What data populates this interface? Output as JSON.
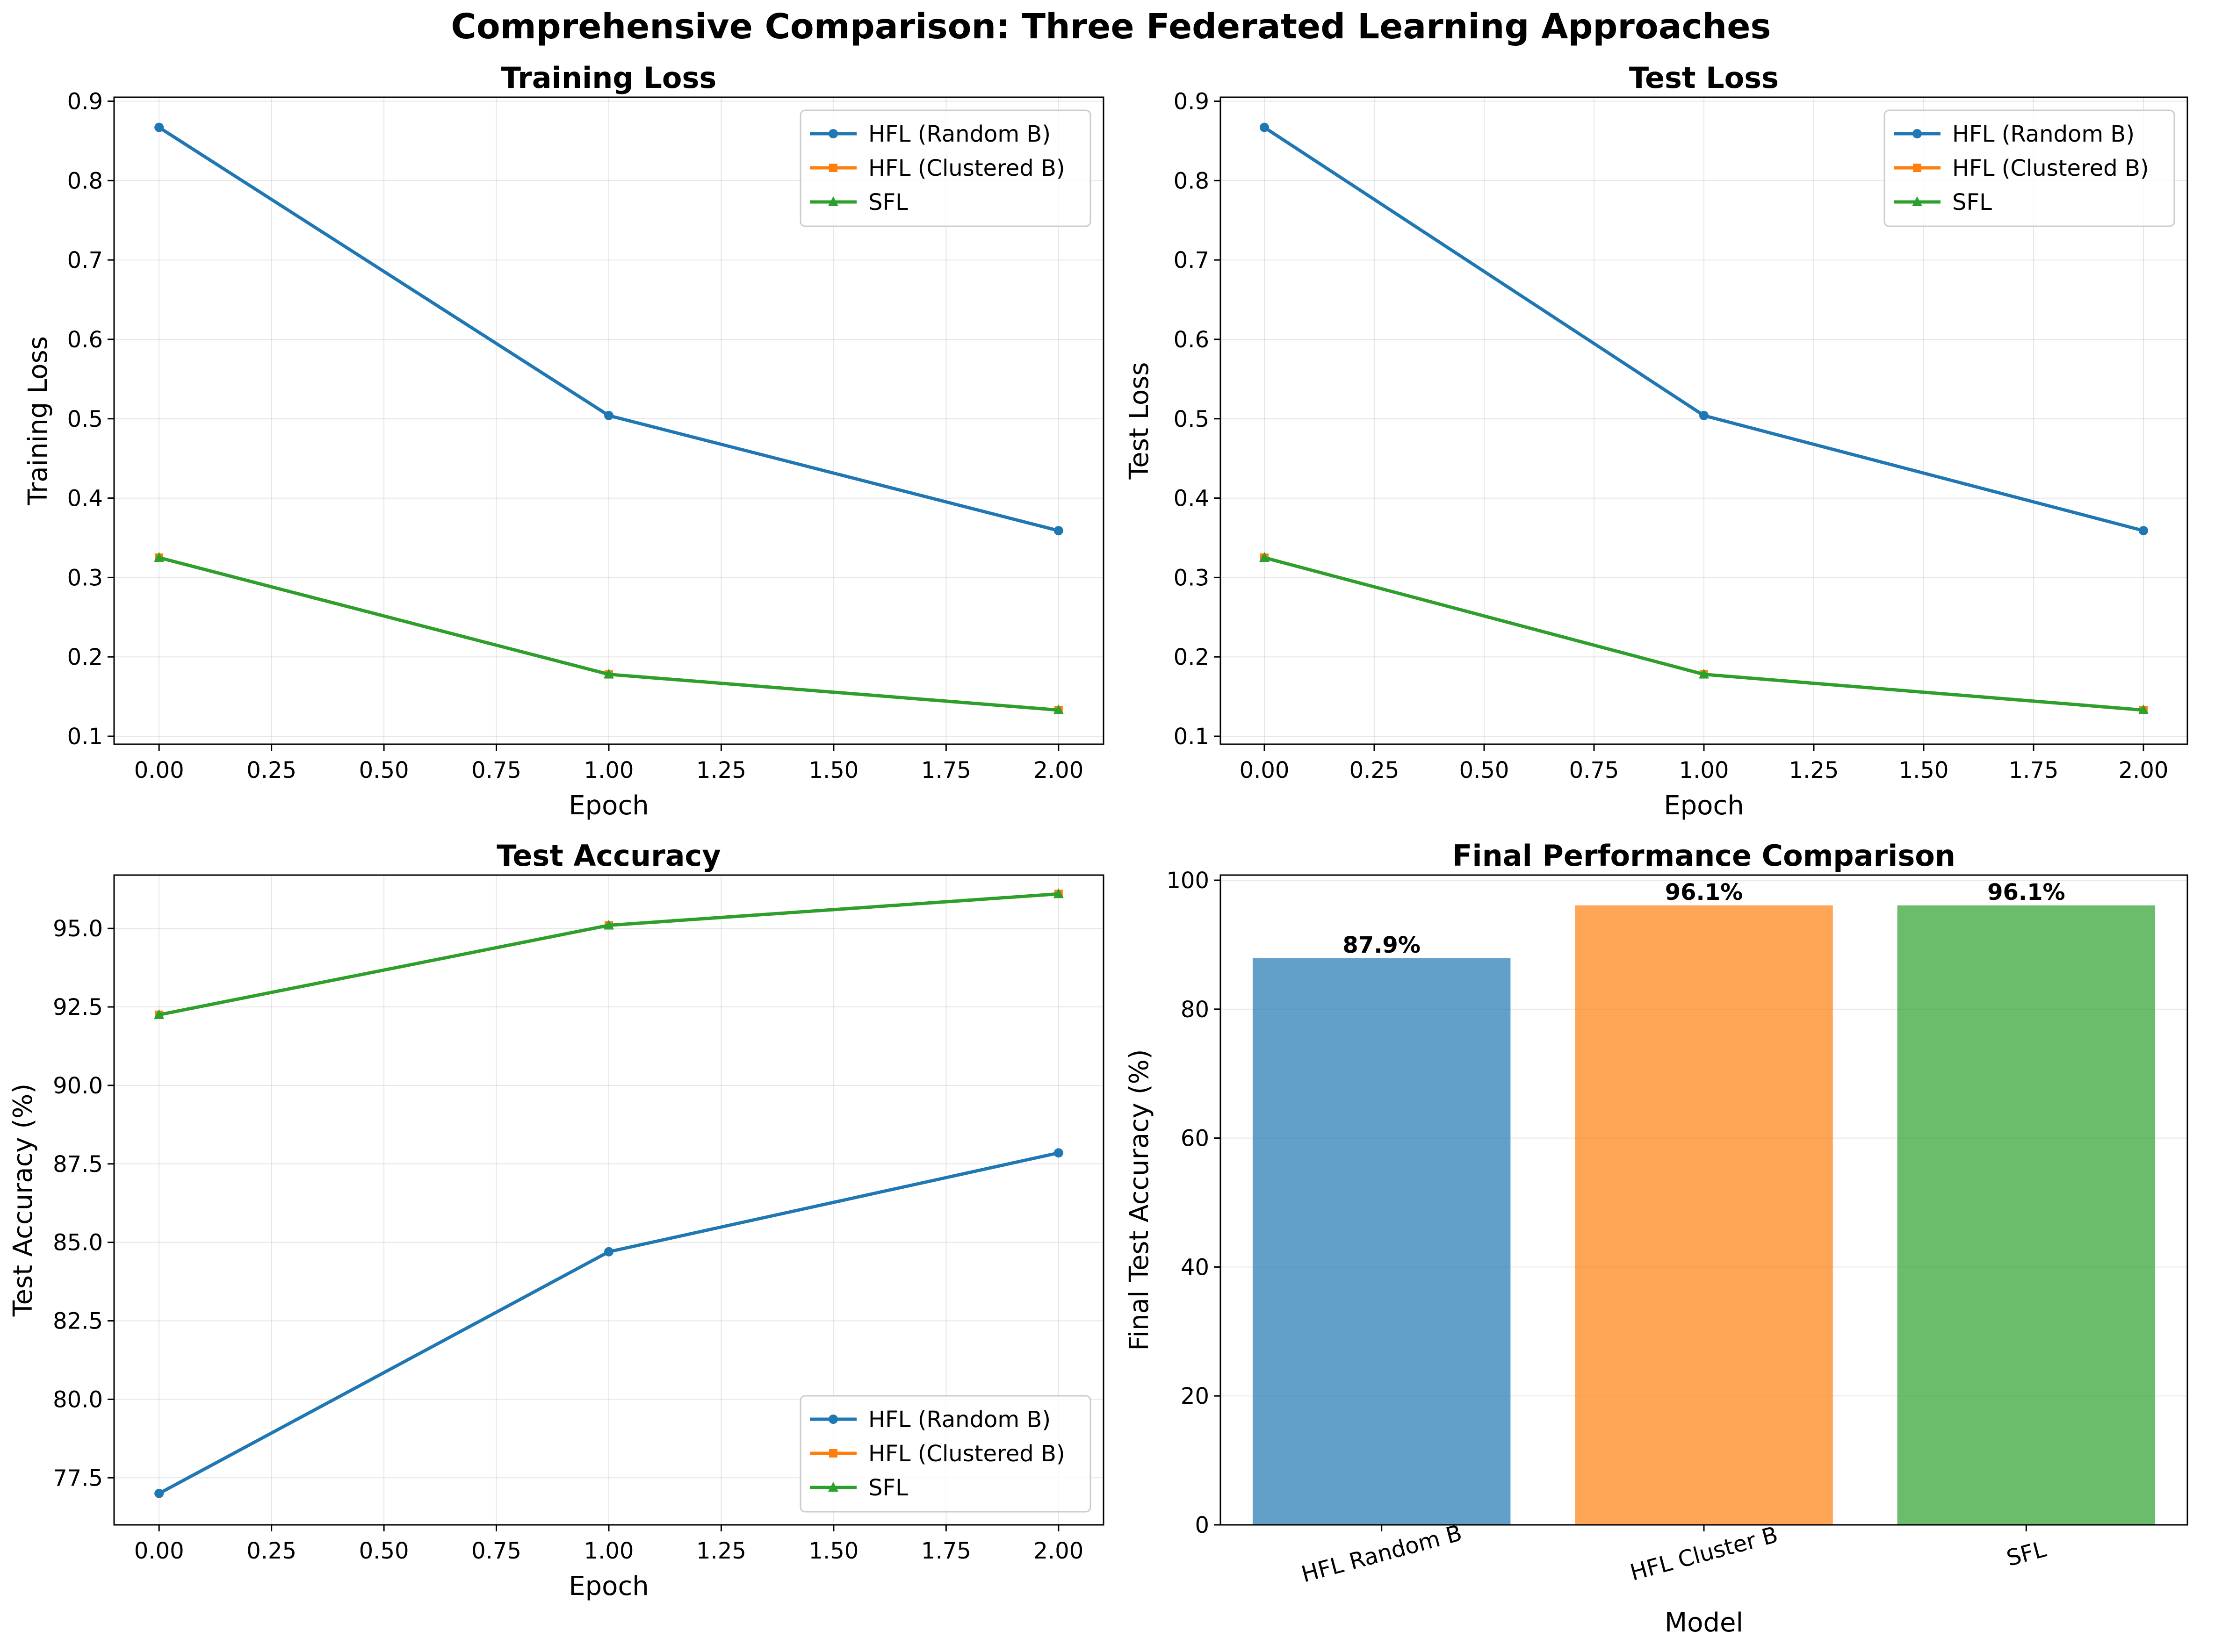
{
  "figure_title": "Comprehensive Comparison: Three Federated Learning Approaches",
  "colors": {
    "hfl_random": "#1f77b4",
    "hfl_clustered": "#ff7f0e",
    "sfl": "#2ca02c"
  },
  "chart_data": [
    {
      "id": "training-loss",
      "type": "line",
      "title": "Training Loss",
      "xlabel": "Epoch",
      "ylabel": "Training Loss",
      "xlim": [
        -0.1,
        2.1
      ],
      "ylim": [
        0.09,
        0.905
      ],
      "xticks": [
        0.0,
        0.25,
        0.5,
        0.75,
        1.0,
        1.25,
        1.5,
        1.75,
        2.0
      ],
      "xtick_labels": [
        "0.00",
        "0.25",
        "0.50",
        "0.75",
        "1.00",
        "1.25",
        "1.50",
        "1.75",
        "2.00"
      ],
      "yticks": [
        0.1,
        0.2,
        0.3,
        0.4,
        0.5,
        0.6,
        0.7,
        0.8,
        0.9
      ],
      "ytick_labels": [
        "0.1",
        "0.2",
        "0.3",
        "0.4",
        "0.5",
        "0.6",
        "0.7",
        "0.8",
        "0.9"
      ],
      "grid": true,
      "legend_position": "upper-right",
      "x": [
        0,
        1,
        2
      ],
      "series": [
        {
          "name": "HFL (Random B)",
          "color": "#1f77b4",
          "marker": "circle",
          "values": [
            0.867,
            0.504,
            0.359
          ]
        },
        {
          "name": "HFL (Clustered B)",
          "color": "#ff7f0e",
          "marker": "square",
          "values": [
            0.325,
            0.178,
            0.133
          ]
        },
        {
          "name": "SFL",
          "color": "#2ca02c",
          "marker": "triangle",
          "values": [
            0.325,
            0.178,
            0.133
          ]
        }
      ]
    },
    {
      "id": "test-loss",
      "type": "line",
      "title": "Test Loss",
      "xlabel": "Epoch",
      "ylabel": "Test Loss",
      "xlim": [
        -0.1,
        2.1
      ],
      "ylim": [
        0.09,
        0.905
      ],
      "xticks": [
        0.0,
        0.25,
        0.5,
        0.75,
        1.0,
        1.25,
        1.5,
        1.75,
        2.0
      ],
      "xtick_labels": [
        "0.00",
        "0.25",
        "0.50",
        "0.75",
        "1.00",
        "1.25",
        "1.50",
        "1.75",
        "2.00"
      ],
      "yticks": [
        0.1,
        0.2,
        0.3,
        0.4,
        0.5,
        0.6,
        0.7,
        0.8,
        0.9
      ],
      "ytick_labels": [
        "0.1",
        "0.2",
        "0.3",
        "0.4",
        "0.5",
        "0.6",
        "0.7",
        "0.8",
        "0.9"
      ],
      "grid": true,
      "legend_position": "upper-right",
      "x": [
        0,
        1,
        2
      ],
      "series": [
        {
          "name": "HFL (Random B)",
          "color": "#1f77b4",
          "marker": "circle",
          "values": [
            0.867,
            0.504,
            0.359
          ]
        },
        {
          "name": "HFL (Clustered B)",
          "color": "#ff7f0e",
          "marker": "square",
          "values": [
            0.325,
            0.178,
            0.133
          ]
        },
        {
          "name": "SFL",
          "color": "#2ca02c",
          "marker": "triangle",
          "values": [
            0.325,
            0.178,
            0.133
          ]
        }
      ]
    },
    {
      "id": "test-accuracy",
      "type": "line",
      "title": "Test Accuracy",
      "xlabel": "Epoch",
      "ylabel": "Test Accuracy (%)",
      "xlim": [
        -0.1,
        2.1
      ],
      "ylim": [
        76.0,
        96.7
      ],
      "xticks": [
        0.0,
        0.25,
        0.5,
        0.75,
        1.0,
        1.25,
        1.5,
        1.75,
        2.0
      ],
      "xtick_labels": [
        "0.00",
        "0.25",
        "0.50",
        "0.75",
        "1.00",
        "1.25",
        "1.50",
        "1.75",
        "2.00"
      ],
      "yticks": [
        77.5,
        80.0,
        82.5,
        85.0,
        87.5,
        90.0,
        92.5,
        95.0
      ],
      "ytick_labels": [
        "77.5",
        "80.0",
        "82.5",
        "85.0",
        "87.5",
        "90.0",
        "92.5",
        "95.0"
      ],
      "grid": true,
      "legend_position": "lower-right",
      "x": [
        0,
        1,
        2
      ],
      "series": [
        {
          "name": "HFL (Random B)",
          "color": "#1f77b4",
          "marker": "circle",
          "values": [
            77.0,
            84.7,
            87.85
          ]
        },
        {
          "name": "HFL (Clustered B)",
          "color": "#ff7f0e",
          "marker": "square",
          "values": [
            92.25,
            95.1,
            96.1
          ]
        },
        {
          "name": "SFL",
          "color": "#2ca02c",
          "marker": "triangle",
          "values": [
            92.25,
            95.1,
            96.1
          ]
        }
      ]
    },
    {
      "id": "final-performance",
      "type": "bar",
      "title": "Final Performance Comparison",
      "xlabel": "Model",
      "ylabel": "Final Test Accuracy (%)",
      "ylim": [
        0,
        100.8
      ],
      "yticks": [
        0,
        20,
        40,
        60,
        80,
        100
      ],
      "ytick_labels": [
        "0",
        "20",
        "40",
        "60",
        "80",
        "100"
      ],
      "grid": true,
      "categories": [
        "HFL Random B",
        "HFL Cluster B",
        "SFL"
      ],
      "values": [
        87.9,
        96.1,
        96.1
      ],
      "value_labels": [
        "87.9%",
        "96.1%",
        "96.1%"
      ],
      "colors": [
        "#1f77b4",
        "#ff7f0e",
        "#2ca02c"
      ],
      "bar_opacity": 0.7,
      "xtick_rotation_deg": 15
    }
  ]
}
